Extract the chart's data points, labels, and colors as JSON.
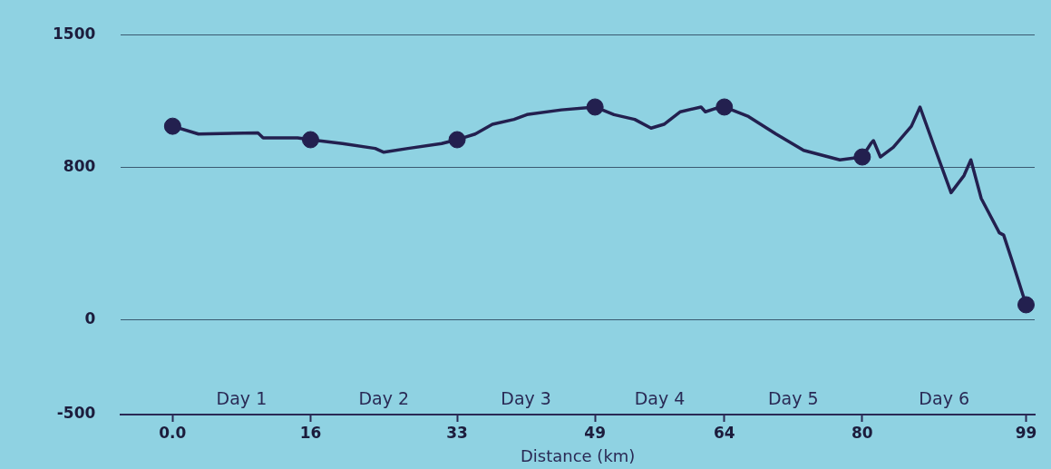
{
  "chart_data": {
    "type": "line",
    "xlabel": "Distance (km)",
    "xlim": [
      -6,
      100
    ],
    "xticks": [
      {
        "value": 0,
        "label": "0.0"
      },
      16,
      33,
      49,
      64,
      80,
      99
    ],
    "ylim": [
      -500,
      1500
    ],
    "yticks": [
      -500,
      0,
      800,
      1500
    ],
    "grid": "y",
    "legend": false,
    "annotations": [
      "Day 1",
      "Day 2",
      "Day 3",
      "Day 4",
      "Day 5",
      "Day 6"
    ],
    "series": [
      {
        "color": "#23204f",
        "marker": "none",
        "x": [
          0,
          3,
          9.9,
          10.5,
          14.5,
          16,
          19.7,
          23.5,
          24.5,
          27.3,
          31.2,
          33,
          35.1,
          37.1,
          39.6,
          41.1,
          45.1,
          49,
          51.2,
          53.6,
          55.5,
          57,
          58.9,
          61.3,
          61.8,
          62.8,
          64,
          66.8,
          70,
          73.2,
          77.4,
          80,
          81,
          81.3,
          82.1,
          83.6,
          85.7,
          86.7,
          88.3,
          90.3,
          91.8,
          92.6,
          93.8,
          95.9,
          96.4,
          97.4,
          99
        ],
        "values": [
          1018,
          977,
          983,
          957,
          957,
          947,
          927,
          901,
          881,
          901,
          927,
          947,
          977,
          1028,
          1054,
          1079,
          1104,
          1119,
          1079,
          1054,
          1008,
          1028,
          1094,
          1119,
          1094,
          1109,
          1119,
          1069,
          977,
          891,
          841,
          856,
          927,
          942,
          856,
          907,
          1018,
          1119,
          917,
          668,
          758,
          841,
          638,
          457,
          445,
          307,
          78
        ]
      },
      {
        "type": "scatter",
        "color": "#23204f",
        "marker": "circle",
        "x": [
          0,
          16,
          33,
          49,
          64,
          80,
          99
        ],
        "values": [
          1018,
          947,
          947,
          1119,
          1119,
          856,
          78
        ]
      }
    ]
  }
}
